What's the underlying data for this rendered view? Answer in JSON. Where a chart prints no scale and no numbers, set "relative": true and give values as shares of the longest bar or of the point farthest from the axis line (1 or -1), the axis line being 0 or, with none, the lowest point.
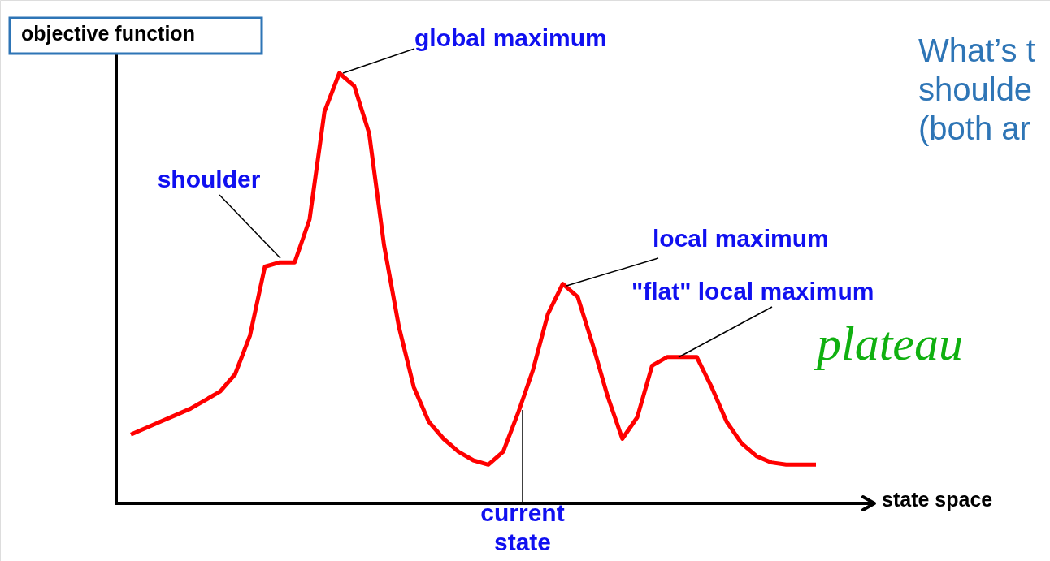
{
  "chart_data": {
    "type": "line",
    "relative": true,
    "xlabel": "state space",
    "ylabel": "objective function",
    "categories": [
      null,
      null,
      null,
      null,
      null,
      null,
      null,
      null,
      null,
      null,
      null,
      null,
      null,
      null,
      null,
      null,
      null,
      null,
      null,
      null,
      null,
      null,
      null,
      null,
      null,
      null,
      null,
      null,
      null,
      null,
      null,
      null,
      null,
      null,
      null,
      null,
      null,
      null,
      null,
      null,
      null,
      null,
      null,
      null,
      null,
      null,
      null
    ],
    "series": [
      {
        "color": "#ff0000",
        "values": [
          0.16,
          0.175,
          0.19,
          0.205,
          0.22,
          0.24,
          0.26,
          0.3,
          0.39,
          0.55,
          0.56,
          0.56,
          0.66,
          0.91,
          1.0,
          0.97,
          0.86,
          0.6,
          0.41,
          0.27,
          0.19,
          0.15,
          0.12,
          0.1,
          0.09,
          0.12,
          0.21,
          0.31,
          0.44,
          0.51,
          0.48,
          0.37,
          0.25,
          0.15,
          0.2,
          0.32,
          0.34,
          0.34,
          0.34,
          0.27,
          0.19,
          0.14,
          0.11,
          0.095,
          0.09,
          0.09,
          0.09
        ]
      }
    ],
    "annotations": [
      "global maximum",
      "shoulder",
      "local maximum",
      "\"flat\" local maximum",
      "current state",
      "plateau",
      "What’s t\nshoulde\n(both ar"
    ]
  }
}
